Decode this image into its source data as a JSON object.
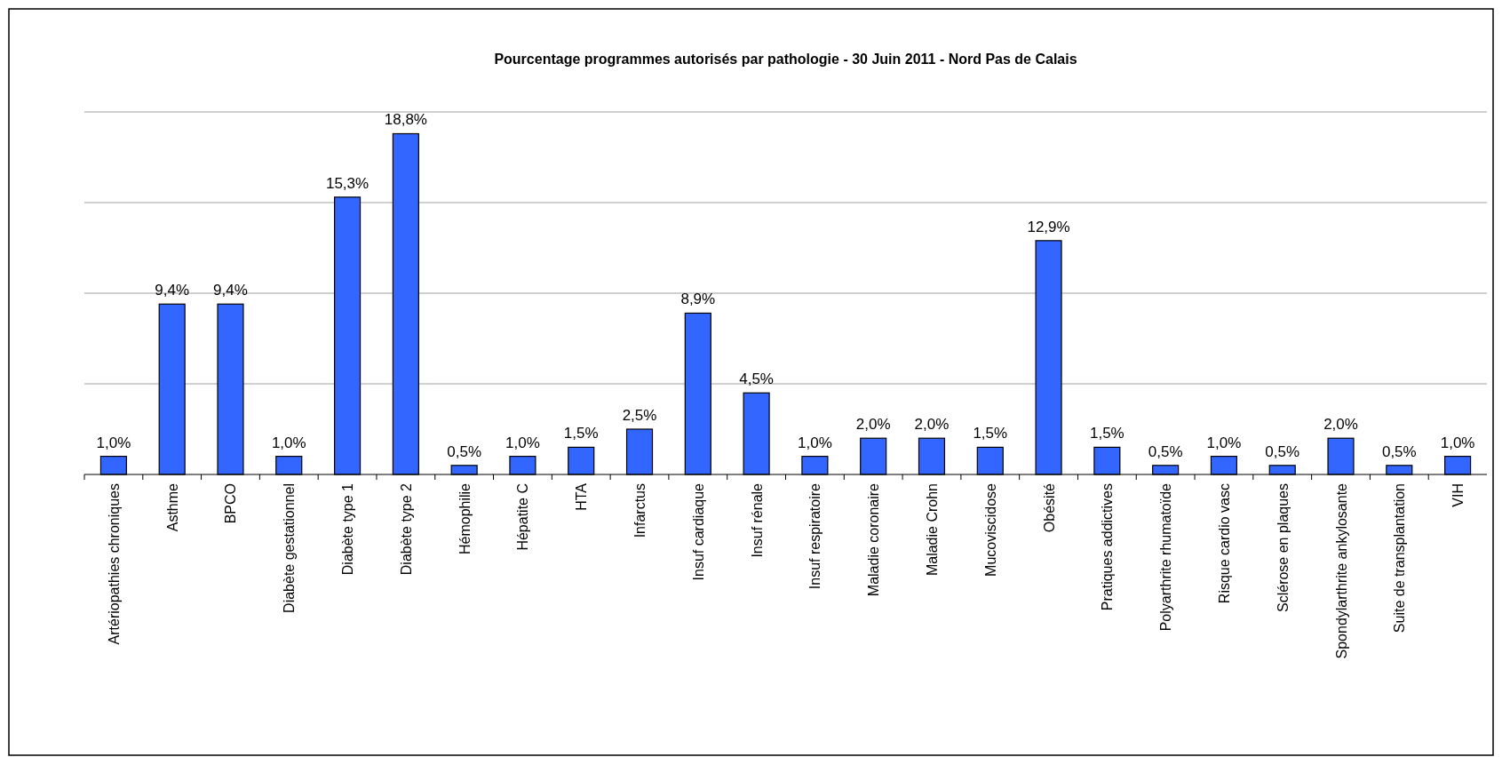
{
  "chart_data": {
    "type": "bar",
    "title": "Pourcentage programmes autorisés par pathologie - 30 Juin 2011 - Nord Pas de Calais",
    "categories": [
      "Artériopathies chroniques",
      "Asthme",
      "BPCO",
      "Diabète gestationnel",
      "Diabète type 1",
      "Diabète type 2",
      "Hémophilie",
      "Hépatite C",
      "HTA",
      "Infarctus",
      "Insuf cardiaque",
      "Insuf rénale",
      "Insuf respiratoire",
      "Maladie coronaire",
      "Maladie Crohn",
      "Mucoviscidose",
      "Obésité",
      "Pratiques addictives",
      "Polyarthrite rhumatoïde",
      "Risque cardio vasc",
      "Sclérose en plaques",
      "Spondylarthrite ankylosante",
      "Suite de transplantation",
      "VIH"
    ],
    "values": [
      1.0,
      9.4,
      9.4,
      1.0,
      15.3,
      18.8,
      0.5,
      1.0,
      1.5,
      2.5,
      8.9,
      4.5,
      1.0,
      2.0,
      2.0,
      1.5,
      12.9,
      1.5,
      0.5,
      1.0,
      0.5,
      2.0,
      0.5,
      1.0
    ],
    "value_labels": [
      "1,0%",
      "9,4%",
      "9,4%",
      "1,0%",
      "15,3%",
      "18,8%",
      "0,5%",
      "1,0%",
      "1,5%",
      "2,5%",
      "8,9%",
      "4,5%",
      "1,0%",
      "2,0%",
      "2,0%",
      "1,5%",
      "12,9%",
      "1,5%",
      "0,5%",
      "1,0%",
      "0,5%",
      "2,0%",
      "0,5%",
      "1,0%"
    ],
    "color": "#3366ff",
    "ylim": [
      0,
      20
    ],
    "yticks": [
      {
        "value": 0,
        "label": null
      },
      {
        "value": 5,
        "label": null
      },
      {
        "value": 10,
        "label": null
      },
      {
        "value": 15,
        "label": null
      },
      {
        "value": 20,
        "label": null
      }
    ],
    "grid": "y",
    "tick_labels": "x"
  }
}
